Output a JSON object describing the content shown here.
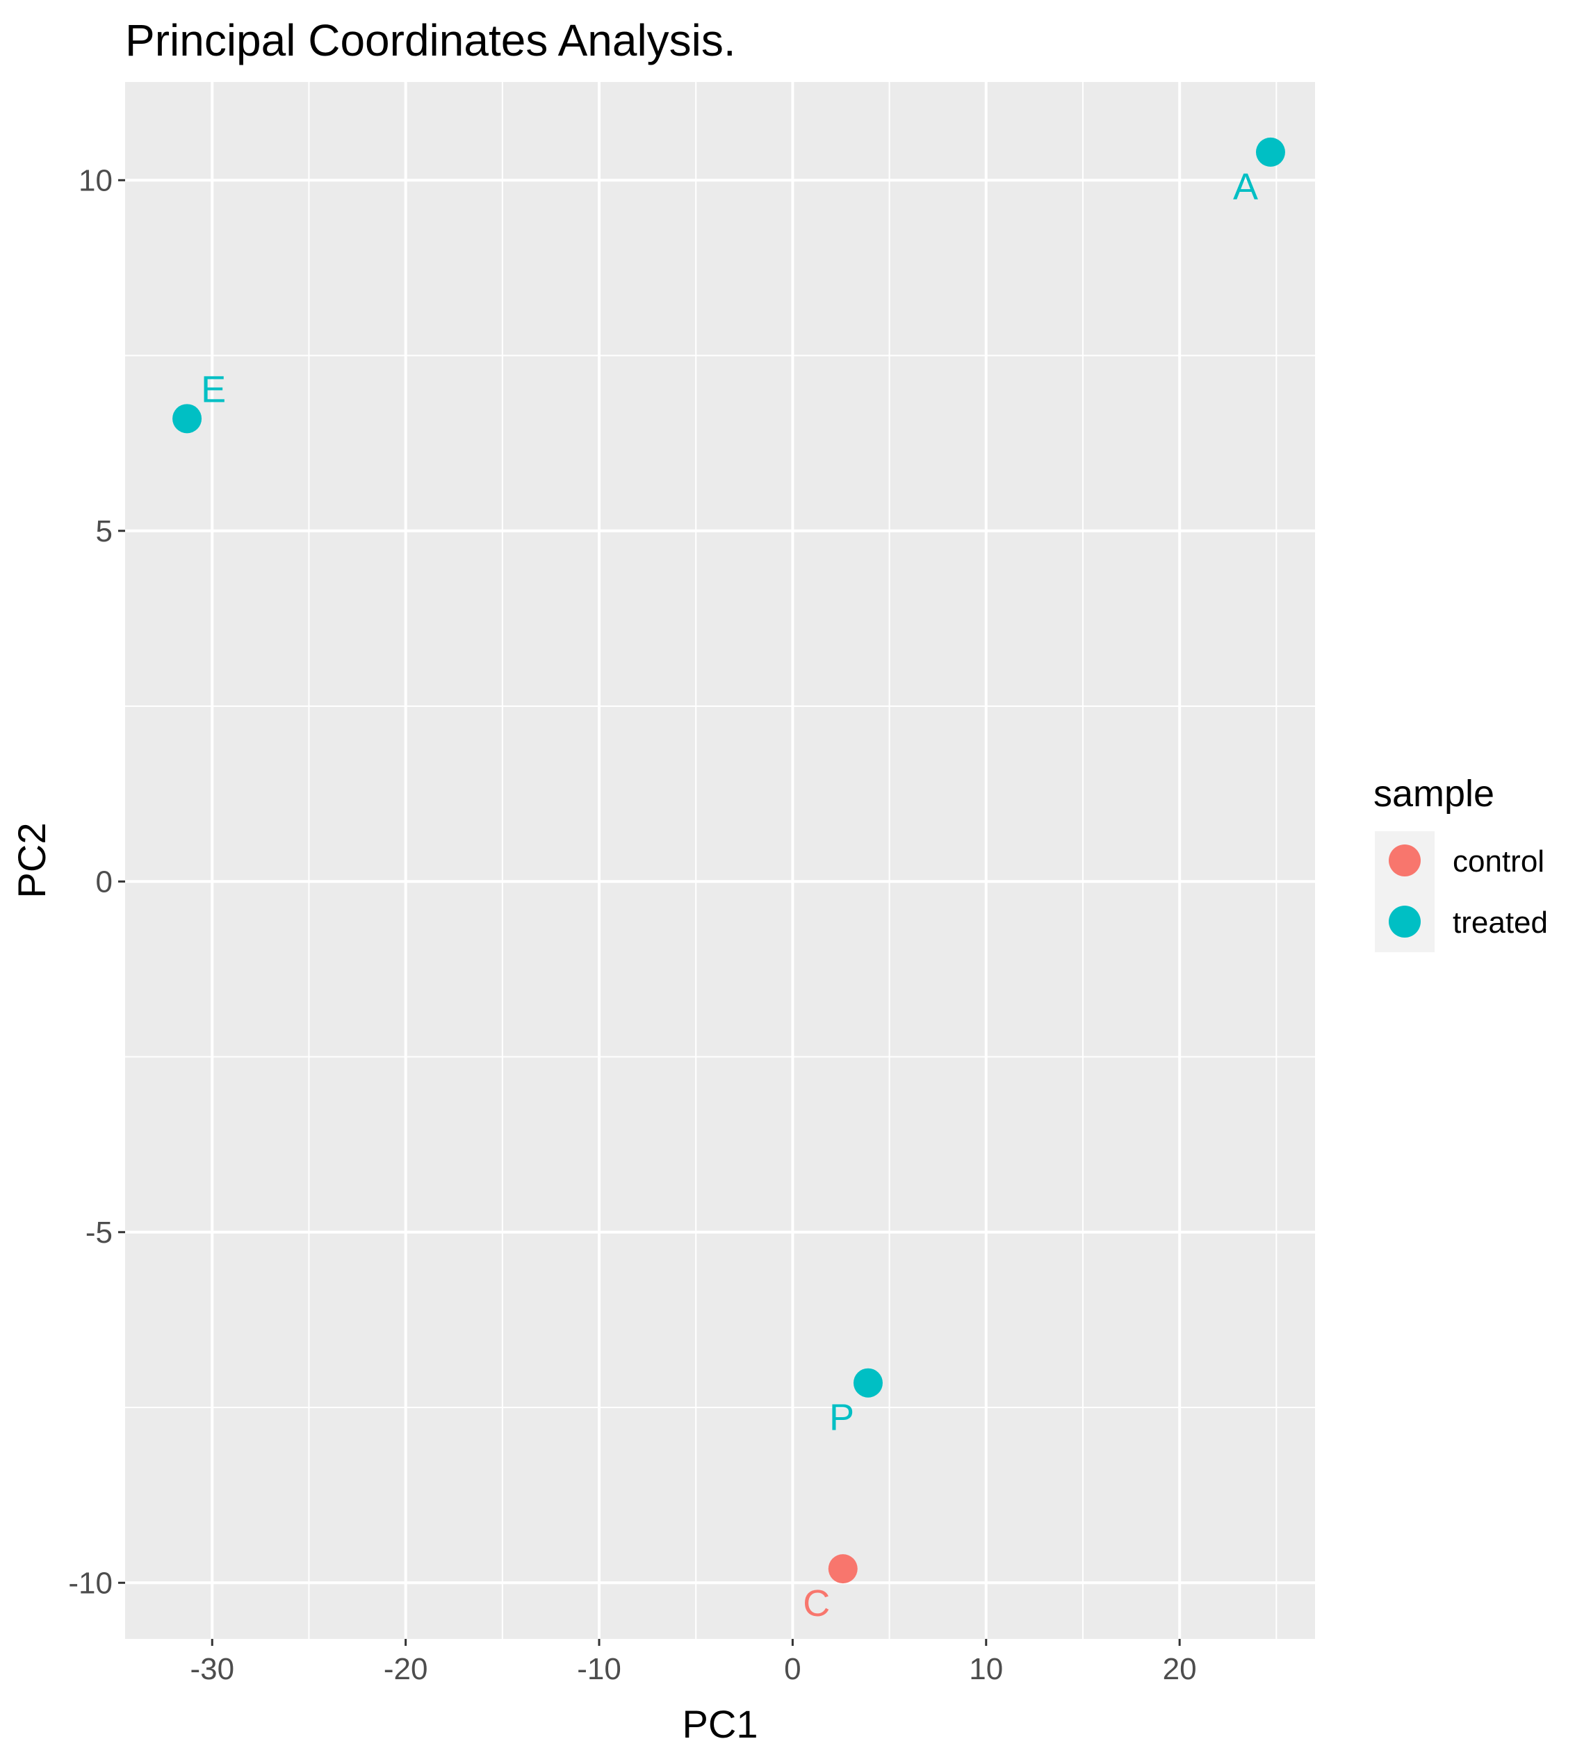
{
  "chart_data": {
    "type": "scatter",
    "title": "Principal Coordinates Analysis.",
    "xlabel": "PC1",
    "ylabel": "PC2",
    "xlim": [
      -34.5,
      27
    ],
    "ylim": [
      -10.8,
      11.4
    ],
    "x_ticks": [
      -30,
      -20,
      -10,
      0,
      10,
      20
    ],
    "y_ticks": [
      -10,
      -5,
      0,
      5,
      10
    ],
    "x_tick_labels": [
      "-30",
      "-20",
      "-10",
      "0",
      "10",
      "20"
    ],
    "y_tick_labels": [
      "-10",
      "-5",
      "0",
      "5",
      "10"
    ],
    "grid": true,
    "legend": {
      "title": "sample",
      "placement": "right",
      "entries": [
        {
          "label": "control",
          "color": "#F8766D"
        },
        {
          "label": "treated",
          "color": "#00BFC4"
        }
      ]
    },
    "points": [
      {
        "label": "A",
        "x": 24.7,
        "y": 10.4,
        "sample": "treated"
      },
      {
        "label": "E",
        "x": -31.3,
        "y": 6.6,
        "sample": "treated"
      },
      {
        "label": "P",
        "x": 3.9,
        "y": -7.15,
        "sample": "treated"
      },
      {
        "label": "C",
        "x": 2.6,
        "y": -9.8,
        "sample": "control"
      }
    ]
  },
  "colors": {
    "panel_background": "#EBEBEB",
    "grid_line": "#FFFFFF",
    "control": "#F8766D",
    "treated": "#00BFC4"
  }
}
